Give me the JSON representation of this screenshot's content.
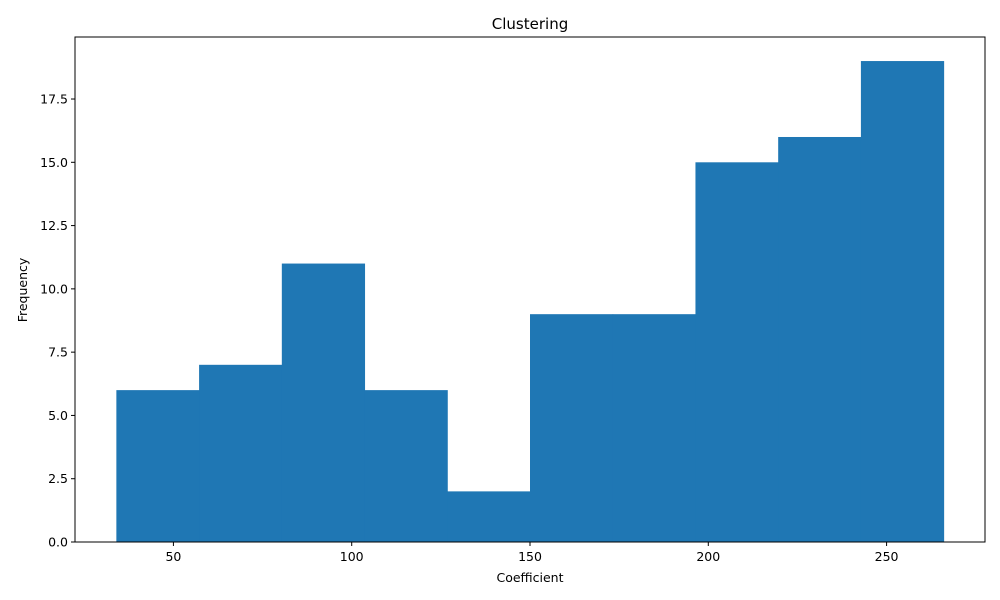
{
  "chart_data": {
    "type": "bar",
    "title": "Clustering",
    "xlabel": "Coefficient",
    "ylabel": "Frequency",
    "bin_edges": [
      34,
      57.2,
      80.4,
      103.6,
      126.8,
      150,
      173.2,
      196.4,
      219.6,
      242.8,
      266
    ],
    "values": [
      6,
      7,
      11,
      6,
      2,
      9,
      9,
      15,
      16,
      19
    ],
    "xlim": [
      22.4,
      277.6
    ],
    "ylim": [
      0,
      19.95
    ],
    "xticks": [
      50,
      100,
      150,
      200,
      250
    ],
    "xtick_labels": [
      "50",
      "100",
      "150",
      "200",
      "250"
    ],
    "yticks": [
      0,
      2.5,
      5,
      7.5,
      10,
      12.5,
      15,
      17.5
    ],
    "ytick_labels": [
      "0.0",
      "2.5",
      "5.0",
      "7.5",
      "10.0",
      "12.5",
      "15.0",
      "17.5"
    ],
    "bar_color": "#1f77b4",
    "grid": false,
    "legend": "none"
  }
}
